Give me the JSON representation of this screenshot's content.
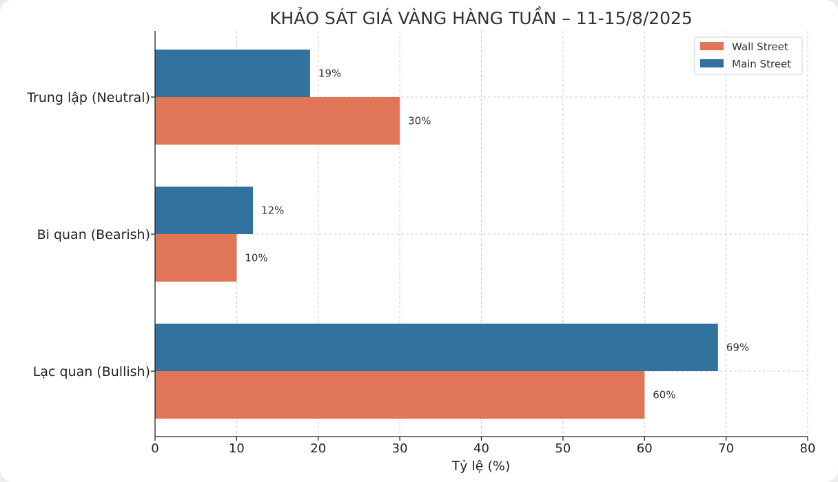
{
  "chart_data": {
    "type": "bar",
    "orientation": "horizontal",
    "title": "KHẢO SÁT GIÁ VÀNG HÀNG TUẦN – 11-15/8/2025",
    "xlabel": "Tỷ lệ (%)",
    "ylabel": "",
    "xlim": [
      0,
      80
    ],
    "xticks": [
      "0",
      "10",
      "20",
      "30",
      "40",
      "50",
      "60",
      "70",
      "80"
    ],
    "categories": [
      "Trung lập (Neutral)",
      "Bi quan (Bearish)",
      "Lạc quan (Bullish)"
    ],
    "series": [
      {
        "name": "Wall Street",
        "color": "#e07558",
        "values": [
          30,
          10,
          60
        ],
        "labels": [
          "30%",
          "10%",
          "60%"
        ]
      },
      {
        "name": "Main Street",
        "color": "#33729f",
        "values": [
          19,
          12,
          69
        ],
        "labels": [
          "19%",
          "12%",
          "69%"
        ]
      }
    ],
    "grid": true,
    "legend_position": "top-right"
  }
}
